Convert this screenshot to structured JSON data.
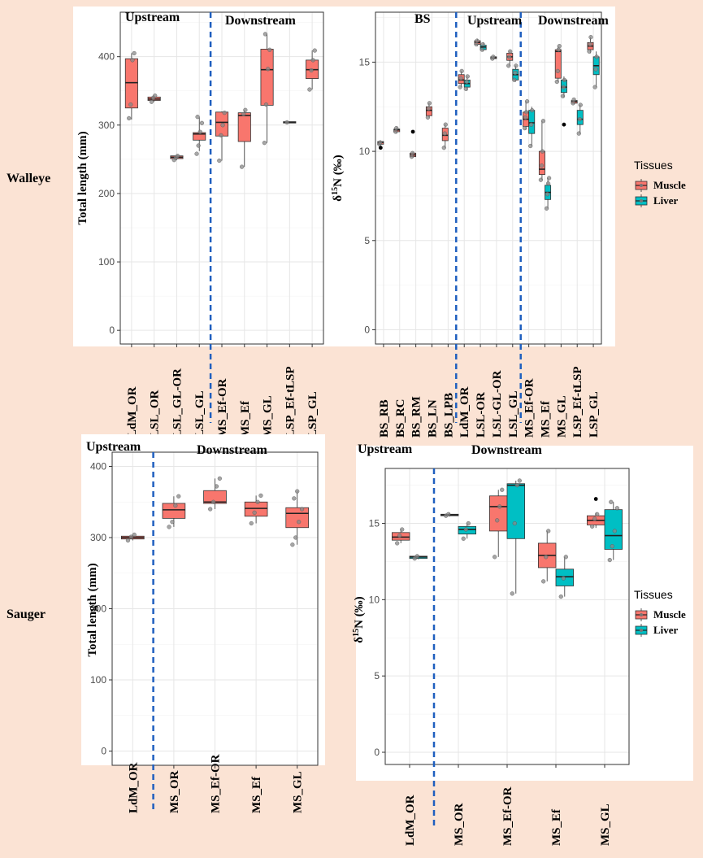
{
  "rows": [
    {
      "species": "Walleye"
    },
    {
      "species": "Sauger"
    }
  ],
  "chart_data": [
    {
      "id": "walleye-length",
      "type": "box",
      "species": "Walleye",
      "ylabel": "Total length (mm)",
      "ylim": [
        -20,
        465
      ],
      "yticks": [
        0,
        100,
        200,
        300,
        400
      ],
      "categories": [
        "LdM_OR",
        "LSL_OR",
        "LSL_GL-OR",
        "LSL_GL",
        "MS_Ef-OR",
        "MS_Ef",
        "MS_GL",
        "LSP_Ef-tLSP",
        "LSP_GL"
      ],
      "regions": [
        {
          "label": "Upstream"
        },
        {
          "label": "Downstream"
        }
      ],
      "divider_after_index": 3,
      "series": [
        {
          "name": "Muscle",
          "color": "#f8766d",
          "boxes": [
            {
              "q1": 325,
              "median": 362,
              "q3": 397,
              "wlo": 308,
              "whi": 405,
              "points": [
                310,
                330,
                395,
                405
              ]
            },
            {
              "q1": 336,
              "median": 338,
              "q3": 341,
              "wlo": 334,
              "whi": 343,
              "points": [
                334,
                340,
                343
              ]
            },
            {
              "q1": 251,
              "median": 253,
              "q3": 255,
              "wlo": 249,
              "whi": 256,
              "points": [
                249,
                252,
                255
              ]
            },
            {
              "q1": 278,
              "median": 287,
              "q3": 289,
              "wlo": 262,
              "whi": 312,
              "points": [
                258,
                270,
                290,
                303,
                312
              ]
            },
            {
              "q1": 284,
              "median": 304,
              "q3": 319,
              "wlo": 248,
              "whi": 320,
              "points": [
                248,
                285,
                300,
                318
              ]
            },
            {
              "q1": 276,
              "median": 314,
              "q3": 318,
              "wlo": 239,
              "whi": 322,
              "points": [
                239,
                316,
                322
              ]
            },
            {
              "q1": 329,
              "median": 381,
              "q3": 411,
              "wlo": 274,
              "whi": 433,
              "points": [
                274,
                330,
                382,
                410,
                433
              ]
            },
            {
              "q1": 303,
              "median": 304,
              "q3": 305,
              "wlo": 303,
              "whi": 305,
              "points": [
                304
              ]
            },
            {
              "q1": 368,
              "median": 381,
              "q3": 395,
              "wlo": 352,
              "whi": 409,
              "points": [
                352,
                380,
                395,
                409
              ]
            }
          ]
        }
      ]
    },
    {
      "id": "walleye-d15n",
      "type": "box",
      "species": "Walleye",
      "ylabel_prefix": "δ",
      "ylabel_sup": "15",
      "ylabel_suffix": "N (‰)",
      "ylim": [
        -0.8,
        17.8
      ],
      "yticks": [
        0,
        5,
        10,
        15
      ],
      "categories": [
        "BS_RB",
        "BS_RC",
        "BS_RM",
        "BS_LN",
        "BS_LPB",
        "LdM_OR",
        "LSL-OR",
        "LSL-GL-OR",
        "LSL_GL",
        "MS_Ef-OR",
        "MS_Ef",
        "MS_GL",
        "LSP_Ef-tLSP",
        "LSP_GL"
      ],
      "regions": [
        {
          "label": "BS"
        },
        {
          "label": "Upstream"
        },
        {
          "label": "Downstream"
        }
      ],
      "divider_after_index": [
        4,
        8
      ],
      "legend": {
        "title": "Tissues",
        "entries": [
          "Muscle",
          "Liver"
        ]
      },
      "series": [
        {
          "name": "Muscle",
          "color": "#f8766d",
          "boxes": [
            {
              "q1": 10.4,
              "median": 10.5,
              "q3": 10.55,
              "wlo": 10.35,
              "whi": 10.6,
              "points": [
                10.4,
                10.5
              ],
              "outliers": [
                10.2
              ]
            },
            {
              "q1": 11.1,
              "median": 11.2,
              "q3": 11.25,
              "wlo": 11.0,
              "whi": 11.35,
              "points": [
                11.1,
                11.3
              ]
            },
            {
              "q1": 9.7,
              "median": 9.8,
              "q3": 9.9,
              "wlo": 9.65,
              "whi": 9.95,
              "points": [
                9.7,
                9.9
              ],
              "outliers": [
                11.1
              ]
            },
            {
              "q1": 12.0,
              "median": 12.3,
              "q3": 12.5,
              "wlo": 11.9,
              "whi": 12.7,
              "points": [
                11.9,
                12.4,
                12.7
              ]
            },
            {
              "q1": 10.6,
              "median": 10.9,
              "q3": 11.3,
              "wlo": 10.2,
              "whi": 11.5,
              "points": [
                10.2,
                11.0,
                11.5
              ]
            },
            {
              "q1": 13.8,
              "median": 14.0,
              "q3": 14.3,
              "wlo": 13.6,
              "whi": 14.5,
              "points": [
                13.6,
                14.1,
                14.5
              ]
            },
            {
              "q1": 16.0,
              "median": 16.1,
              "q3": 16.2,
              "wlo": 15.9,
              "whi": 16.3,
              "points": [
                16.0,
                16.2
              ]
            },
            {
              "q1": 15.2,
              "median": 15.25,
              "q3": 15.3,
              "wlo": 15.15,
              "whi": 15.35,
              "points": [
                15.2,
                15.3
              ]
            },
            {
              "q1": 15.1,
              "median": 15.3,
              "q3": 15.5,
              "wlo": 14.8,
              "whi": 15.6,
              "points": [
                14.8,
                15.3,
                15.6
              ]
            },
            {
              "q1": 11.4,
              "median": 11.8,
              "q3": 12.2,
              "wlo": 11.2,
              "whi": 12.8,
              "points": [
                11.3,
                11.9,
                12.2,
                12.8
              ]
            },
            {
              "q1": 8.7,
              "median": 9.0,
              "q3": 10.0,
              "wlo": 8.4,
              "whi": 11.7,
              "points": [
                8.4,
                9.2,
                10.0,
                11.7
              ]
            },
            {
              "q1": 14.1,
              "median": 15.6,
              "q3": 15.7,
              "wlo": 13.9,
              "whi": 15.9,
              "points": [
                13.9,
                14.5,
                15.7,
                15.9
              ]
            },
            {
              "q1": 12.7,
              "median": 12.8,
              "q3": 12.85,
              "wlo": 12.65,
              "whi": 12.9,
              "points": [
                12.7,
                12.9
              ]
            },
            {
              "q1": 15.7,
              "median": 15.9,
              "q3": 16.1,
              "wlo": 15.5,
              "whi": 16.4,
              "points": [
                15.6,
                16.0,
                16.4
              ]
            }
          ]
        },
        {
          "name": "Liver",
          "color": "#00bfc4",
          "boxes": [
            null,
            null,
            null,
            null,
            null,
            {
              "q1": 13.6,
              "median": 13.8,
              "q3": 14.0,
              "wlo": 13.4,
              "whi": 14.2,
              "points": [
                13.5,
                13.9,
                14.2
              ]
            },
            {
              "q1": 15.7,
              "median": 15.85,
              "q3": 15.95,
              "wlo": 15.6,
              "whi": 16.1,
              "points": [
                15.7,
                16.0
              ]
            },
            null,
            {
              "q1": 14.0,
              "median": 14.3,
              "q3": 14.6,
              "wlo": 13.9,
              "whi": 14.8,
              "points": [
                14.0,
                14.4,
                14.8
              ]
            },
            {
              "q1": 11.0,
              "median": 11.6,
              "q3": 12.3,
              "wlo": 10.3,
              "whi": 12.5,
              "points": [
                10.3,
                11.5,
                12.3
              ]
            },
            {
              "q1": 7.3,
              "median": 7.7,
              "q3": 8.1,
              "wlo": 6.8,
              "whi": 8.5,
              "points": [
                6.8,
                7.6,
                8.2,
                8.5
              ]
            },
            {
              "q1": 13.3,
              "median": 13.6,
              "q3": 14.0,
              "wlo": 13.0,
              "whi": 14.2,
              "points": [
                13.1,
                13.6,
                14.0
              ],
              "outliers": [
                11.5
              ]
            },
            {
              "q1": 11.5,
              "median": 11.8,
              "q3": 12.3,
              "wlo": 11.0,
              "whi": 12.6,
              "points": [
                11.0,
                11.8,
                12.6
              ]
            },
            {
              "q1": 14.3,
              "median": 14.8,
              "q3": 15.3,
              "wlo": 13.6,
              "whi": 15.6,
              "points": [
                13.6,
                14.6,
                15.3
              ]
            }
          ]
        }
      ]
    },
    {
      "id": "sauger-length",
      "type": "box",
      "species": "Sauger",
      "ylabel": "Total length (mm)",
      "ylim": [
        -20,
        420
      ],
      "yticks": [
        0,
        100,
        200,
        300,
        400
      ],
      "categories": [
        "LdM_OR",
        "MS_OR",
        "MS_Ef-OR",
        "MS_Ef",
        "MS_GL"
      ],
      "regions": [
        {
          "label": "Upstream"
        },
        {
          "label": "Downstream"
        }
      ],
      "divider_after_index": 0,
      "series": [
        {
          "name": "Muscle",
          "color": "#f8766d",
          "boxes": [
            {
              "q1": 298,
              "median": 300,
              "q3": 302,
              "wlo": 296,
              "whi": 304,
              "points": [
                296,
                301,
                304
              ]
            },
            {
              "q1": 327,
              "median": 339,
              "q3": 348,
              "wlo": 315,
              "whi": 358,
              "points": [
                315,
                322,
                345,
                358
              ]
            },
            {
              "q1": 348,
              "median": 350,
              "q3": 366,
              "wlo": 340,
              "whi": 383,
              "points": [
                340,
                350,
                372,
                383
              ]
            },
            {
              "q1": 330,
              "median": 341,
              "q3": 350,
              "wlo": 320,
              "whi": 359,
              "points": [
                320,
                335,
                350,
                359
              ]
            },
            {
              "q1": 314,
              "median": 334,
              "q3": 342,
              "wlo": 290,
              "whi": 365,
              "points": [
                290,
                300,
                322,
                340,
                355,
                365
              ]
            }
          ]
        }
      ]
    },
    {
      "id": "sauger-d15n",
      "type": "box",
      "species": "Sauger",
      "ylabel_prefix": "δ",
      "ylabel_sup": "15",
      "ylabel_suffix": "N (‰)",
      "ylim": [
        -0.8,
        18.6
      ],
      "yticks": [
        0,
        5,
        10,
        15
      ],
      "categories": [
        "LdM_OR",
        "MS_OR",
        "MS_Ef-OR",
        "MS_Ef",
        "MS_GL"
      ],
      "regions": [
        {
          "label": "Upstream"
        },
        {
          "label": "Downstream"
        }
      ],
      "divider_after_index": 0,
      "legend": {
        "title": "Tissues",
        "entries": [
          "Muscle",
          "Liver"
        ]
      },
      "series": [
        {
          "name": "Muscle",
          "color": "#f8766d",
          "boxes": [
            {
              "q1": 13.9,
              "median": 14.1,
              "q3": 14.4,
              "wlo": 13.7,
              "whi": 14.6,
              "points": [
                13.7,
                14.2,
                14.6
              ]
            },
            {
              "q1": 15.5,
              "median": 15.55,
              "q3": 15.6,
              "wlo": 15.45,
              "whi": 15.7,
              "points": [
                15.5,
                15.6
              ]
            },
            {
              "q1": 14.5,
              "median": 16.1,
              "q3": 16.8,
              "wlo": 12.8,
              "whi": 17.2,
              "points": [
                12.8,
                15.2,
                16.1,
                17.2
              ]
            },
            {
              "q1": 12.1,
              "median": 12.9,
              "q3": 13.7,
              "wlo": 11.2,
              "whi": 14.5,
              "points": [
                11.2,
                12.8,
                14.5
              ]
            },
            {
              "q1": 14.9,
              "median": 15.2,
              "q3": 15.5,
              "wlo": 14.7,
              "whi": 15.7,
              "points": [
                14.8,
                15.3,
                15.6
              ],
              "outliers": [
                16.6
              ]
            }
          ]
        },
        {
          "name": "Liver",
          "color": "#00bfc4",
          "boxes": [
            {
              "q1": 12.7,
              "median": 12.8,
              "q3": 12.85,
              "wlo": 12.65,
              "whi": 12.9,
              "points": [
                12.7,
                12.85
              ]
            },
            {
              "q1": 14.3,
              "median": 14.6,
              "q3": 14.8,
              "wlo": 14.0,
              "whi": 15.0,
              "points": [
                14.0,
                14.6,
                15.0
              ]
            },
            {
              "q1": 14.0,
              "median": 17.5,
              "q3": 17.6,
              "wlo": 10.4,
              "whi": 17.8,
              "points": [
                10.4,
                15.0,
                17.5,
                17.8
              ]
            },
            {
              "q1": 10.9,
              "median": 11.5,
              "q3": 12.0,
              "wlo": 10.2,
              "whi": 12.8,
              "points": [
                10.2,
                11.4,
                12.8
              ]
            },
            {
              "q1": 13.3,
              "median": 14.2,
              "q3": 15.9,
              "wlo": 12.6,
              "whi": 16.4,
              "points": [
                12.6,
                13.5,
                14.5,
                16.0,
                16.4
              ]
            }
          ]
        }
      ]
    }
  ]
}
